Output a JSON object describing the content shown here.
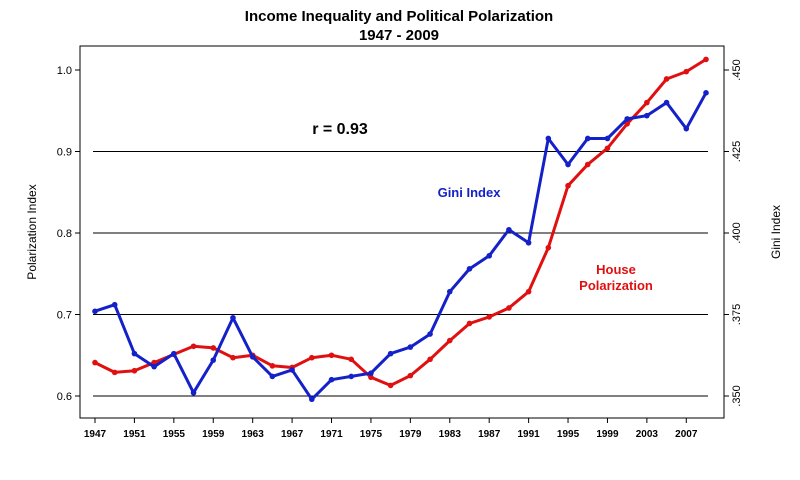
{
  "chart_data": {
    "type": "line",
    "title": "Income Inequality and Political Polarization",
    "subtitle": "1947 - 2009",
    "ylabel_left": "Polarization Index",
    "ylabel_right": "Gini Index",
    "annotation": "r = 0.93",
    "x_ticks": [
      1947,
      1951,
      1955,
      1959,
      1963,
      1967,
      1971,
      1975,
      1979,
      1983,
      1987,
      1991,
      1995,
      1999,
      2003,
      2007
    ],
    "left_axis": {
      "ticks": [
        "0.6",
        "0.7",
        "0.8",
        "0.9",
        "1.0"
      ],
      "range": [
        0.6,
        1.0
      ]
    },
    "right_axis": {
      "ticks": [
        ".350",
        ".375",
        ".400",
        ".425",
        ".450"
      ],
      "range": [
        0.35,
        0.45
      ]
    },
    "gridlines_left": [
      0.6,
      0.7,
      0.8,
      0.9
    ],
    "grid": true,
    "series": [
      {
        "name": "House Polarization",
        "label_lines": [
          "House",
          "Polarization"
        ],
        "axis": "left",
        "color": "#e01010",
        "x": [
          1947,
          1949,
          1951,
          1953,
          1955,
          1957,
          1959,
          1961,
          1963,
          1965,
          1967,
          1969,
          1971,
          1973,
          1975,
          1977,
          1979,
          1981,
          1983,
          1985,
          1987,
          1989,
          1991,
          1993,
          1995,
          1997,
          1999,
          2001,
          2003,
          2005,
          2007,
          2009
        ],
        "values": [
          0.641,
          0.629,
          0.631,
          0.641,
          0.651,
          0.661,
          0.659,
          0.647,
          0.65,
          0.637,
          0.635,
          0.647,
          0.65,
          0.645,
          0.623,
          0.613,
          0.625,
          0.645,
          0.668,
          0.689,
          0.697,
          0.708,
          0.728,
          0.782,
          0.858,
          0.884,
          0.904,
          0.934,
          0.96,
          0.989,
          0.998,
          1.013
        ]
      },
      {
        "name": "Gini Index",
        "label_lines": [
          "Gini Index"
        ],
        "axis": "right",
        "color": "#1420c8",
        "x": [
          1947,
          1949,
          1951,
          1953,
          1955,
          1957,
          1959,
          1961,
          1963,
          1965,
          1967,
          1969,
          1971,
          1973,
          1975,
          1977,
          1979,
          1981,
          1983,
          1985,
          1987,
          1989,
          1991,
          1993,
          1995,
          1997,
          1999,
          2001,
          2003,
          2005,
          2007,
          2009
        ],
        "values": [
          0.376,
          0.378,
          0.363,
          0.359,
          0.363,
          0.351,
          0.361,
          0.374,
          0.362,
          0.356,
          0.358,
          0.349,
          0.355,
          0.356,
          0.357,
          0.363,
          0.365,
          0.369,
          0.382,
          0.389,
          0.393,
          0.401,
          0.397,
          0.429,
          0.421,
          0.429,
          0.429,
          0.435,
          0.436,
          0.44,
          0.432,
          0.443
        ]
      }
    ]
  }
}
